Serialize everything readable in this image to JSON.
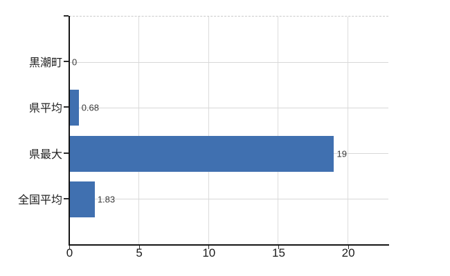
{
  "chart": {
    "background_color": "#ffffff",
    "bar_color": "#4070b0",
    "vertical_grid_color": "#dcdcdc",
    "horizontal_grid_color": "#d8d8d8",
    "top_border_color": "#c9c9c9",
    "axis_color": "#141414",
    "category_label_color": "#1f1f1f",
    "tick_label_color": "#1c1c1c",
    "value_label_color": "#3a3a3a"
  },
  "chart_data": {
    "type": "bar",
    "orientation": "horizontal",
    "title": "",
    "categories": [
      "黒潮町",
      "県平均",
      "県最大",
      "全国平均"
    ],
    "values": [
      0,
      0.68,
      19,
      1.83
    ],
    "value_labels": [
      "0",
      "0.68",
      "19",
      "1.83"
    ],
    "x_ticks": [
      0,
      5,
      10,
      15,
      20
    ],
    "xlim": [
      0,
      22.9
    ],
    "grid": true,
    "legend": false
  }
}
